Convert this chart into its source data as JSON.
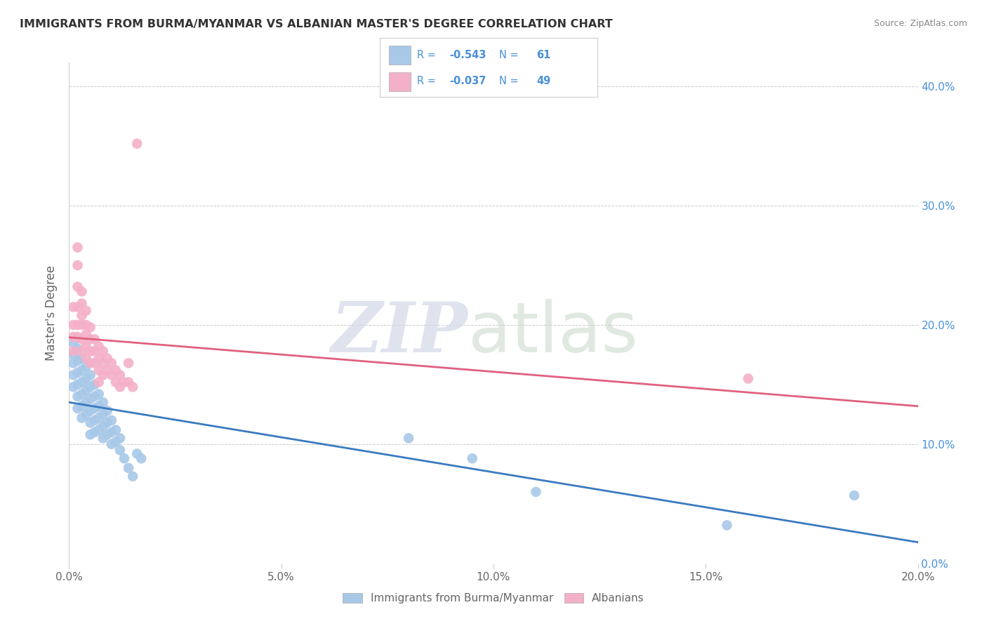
{
  "title": "IMMIGRANTS FROM BURMA/MYANMAR VS ALBANIAN MASTER'S DEGREE CORRELATION CHART",
  "source": "Source: ZipAtlas.com",
  "ylabel": "Master's Degree",
  "xlim": [
    0,
    0.2
  ],
  "ylim": [
    0,
    0.42
  ],
  "xticks": [
    0.0,
    0.05,
    0.1,
    0.15,
    0.2
  ],
  "yticks_right": [
    0.0,
    0.1,
    0.2,
    0.3,
    0.4
  ],
  "blue_R": -0.543,
  "blue_N": 61,
  "pink_R": -0.037,
  "pink_N": 49,
  "blue_color": "#a8c8e8",
  "pink_color": "#f4b0c8",
  "blue_line_color": "#3a7abf",
  "pink_line_color": "#e06080",
  "blue_scatter": [
    [
      0.001,
      0.185
    ],
    [
      0.001,
      0.175
    ],
    [
      0.001,
      0.168
    ],
    [
      0.001,
      0.158
    ],
    [
      0.001,
      0.148
    ],
    [
      0.002,
      0.18
    ],
    [
      0.002,
      0.17
    ],
    [
      0.002,
      0.16
    ],
    [
      0.002,
      0.15
    ],
    [
      0.002,
      0.14
    ],
    [
      0.002,
      0.13
    ],
    [
      0.003,
      0.172
    ],
    [
      0.003,
      0.162
    ],
    [
      0.003,
      0.152
    ],
    [
      0.003,
      0.142
    ],
    [
      0.003,
      0.132
    ],
    [
      0.003,
      0.122
    ],
    [
      0.004,
      0.165
    ],
    [
      0.004,
      0.155
    ],
    [
      0.004,
      0.145
    ],
    [
      0.004,
      0.135
    ],
    [
      0.004,
      0.125
    ],
    [
      0.005,
      0.158
    ],
    [
      0.005,
      0.148
    ],
    [
      0.005,
      0.138
    ],
    [
      0.005,
      0.128
    ],
    [
      0.005,
      0.118
    ],
    [
      0.005,
      0.108
    ],
    [
      0.006,
      0.15
    ],
    [
      0.006,
      0.14
    ],
    [
      0.006,
      0.13
    ],
    [
      0.006,
      0.12
    ],
    [
      0.006,
      0.11
    ],
    [
      0.007,
      0.142
    ],
    [
      0.007,
      0.132
    ],
    [
      0.007,
      0.122
    ],
    [
      0.007,
      0.112
    ],
    [
      0.008,
      0.135
    ],
    [
      0.008,
      0.125
    ],
    [
      0.008,
      0.115
    ],
    [
      0.008,
      0.105
    ],
    [
      0.009,
      0.128
    ],
    [
      0.009,
      0.118
    ],
    [
      0.009,
      0.108
    ],
    [
      0.01,
      0.12
    ],
    [
      0.01,
      0.11
    ],
    [
      0.01,
      0.1
    ],
    [
      0.011,
      0.112
    ],
    [
      0.011,
      0.102
    ],
    [
      0.012,
      0.105
    ],
    [
      0.012,
      0.095
    ],
    [
      0.013,
      0.088
    ],
    [
      0.014,
      0.08
    ],
    [
      0.015,
      0.073
    ],
    [
      0.016,
      0.092
    ],
    [
      0.017,
      0.088
    ],
    [
      0.08,
      0.105
    ],
    [
      0.095,
      0.088
    ],
    [
      0.11,
      0.06
    ],
    [
      0.155,
      0.032
    ],
    [
      0.185,
      0.057
    ]
  ],
  "pink_scatter": [
    [
      0.001,
      0.215
    ],
    [
      0.001,
      0.2
    ],
    [
      0.001,
      0.19
    ],
    [
      0.001,
      0.178
    ],
    [
      0.002,
      0.265
    ],
    [
      0.002,
      0.25
    ],
    [
      0.002,
      0.232
    ],
    [
      0.002,
      0.215
    ],
    [
      0.002,
      0.2
    ],
    [
      0.002,
      0.19
    ],
    [
      0.003,
      0.228
    ],
    [
      0.003,
      0.218
    ],
    [
      0.003,
      0.208
    ],
    [
      0.003,
      0.2
    ],
    [
      0.003,
      0.188
    ],
    [
      0.003,
      0.178
    ],
    [
      0.004,
      0.212
    ],
    [
      0.004,
      0.2
    ],
    [
      0.004,
      0.192
    ],
    [
      0.004,
      0.182
    ],
    [
      0.004,
      0.172
    ],
    [
      0.005,
      0.198
    ],
    [
      0.005,
      0.188
    ],
    [
      0.005,
      0.178
    ],
    [
      0.005,
      0.168
    ],
    [
      0.006,
      0.188
    ],
    [
      0.006,
      0.178
    ],
    [
      0.006,
      0.168
    ],
    [
      0.007,
      0.182
    ],
    [
      0.007,
      0.172
    ],
    [
      0.007,
      0.162
    ],
    [
      0.007,
      0.152
    ],
    [
      0.008,
      0.178
    ],
    [
      0.008,
      0.168
    ],
    [
      0.008,
      0.158
    ],
    [
      0.009,
      0.172
    ],
    [
      0.009,
      0.162
    ],
    [
      0.01,
      0.168
    ],
    [
      0.01,
      0.158
    ],
    [
      0.011,
      0.162
    ],
    [
      0.011,
      0.152
    ],
    [
      0.012,
      0.158
    ],
    [
      0.012,
      0.148
    ],
    [
      0.013,
      0.152
    ],
    [
      0.014,
      0.168
    ],
    [
      0.014,
      0.152
    ],
    [
      0.015,
      0.148
    ],
    [
      0.16,
      0.155
    ],
    [
      0.016,
      0.352
    ]
  ],
  "watermark_zip": "ZIP",
  "watermark_atlas": "atlas",
  "legend_entries": [
    {
      "label": "Immigrants from Burma/Myanmar",
      "color": "#a8c8e8"
    },
    {
      "label": "Albanians",
      "color": "#f4b0c8"
    }
  ]
}
